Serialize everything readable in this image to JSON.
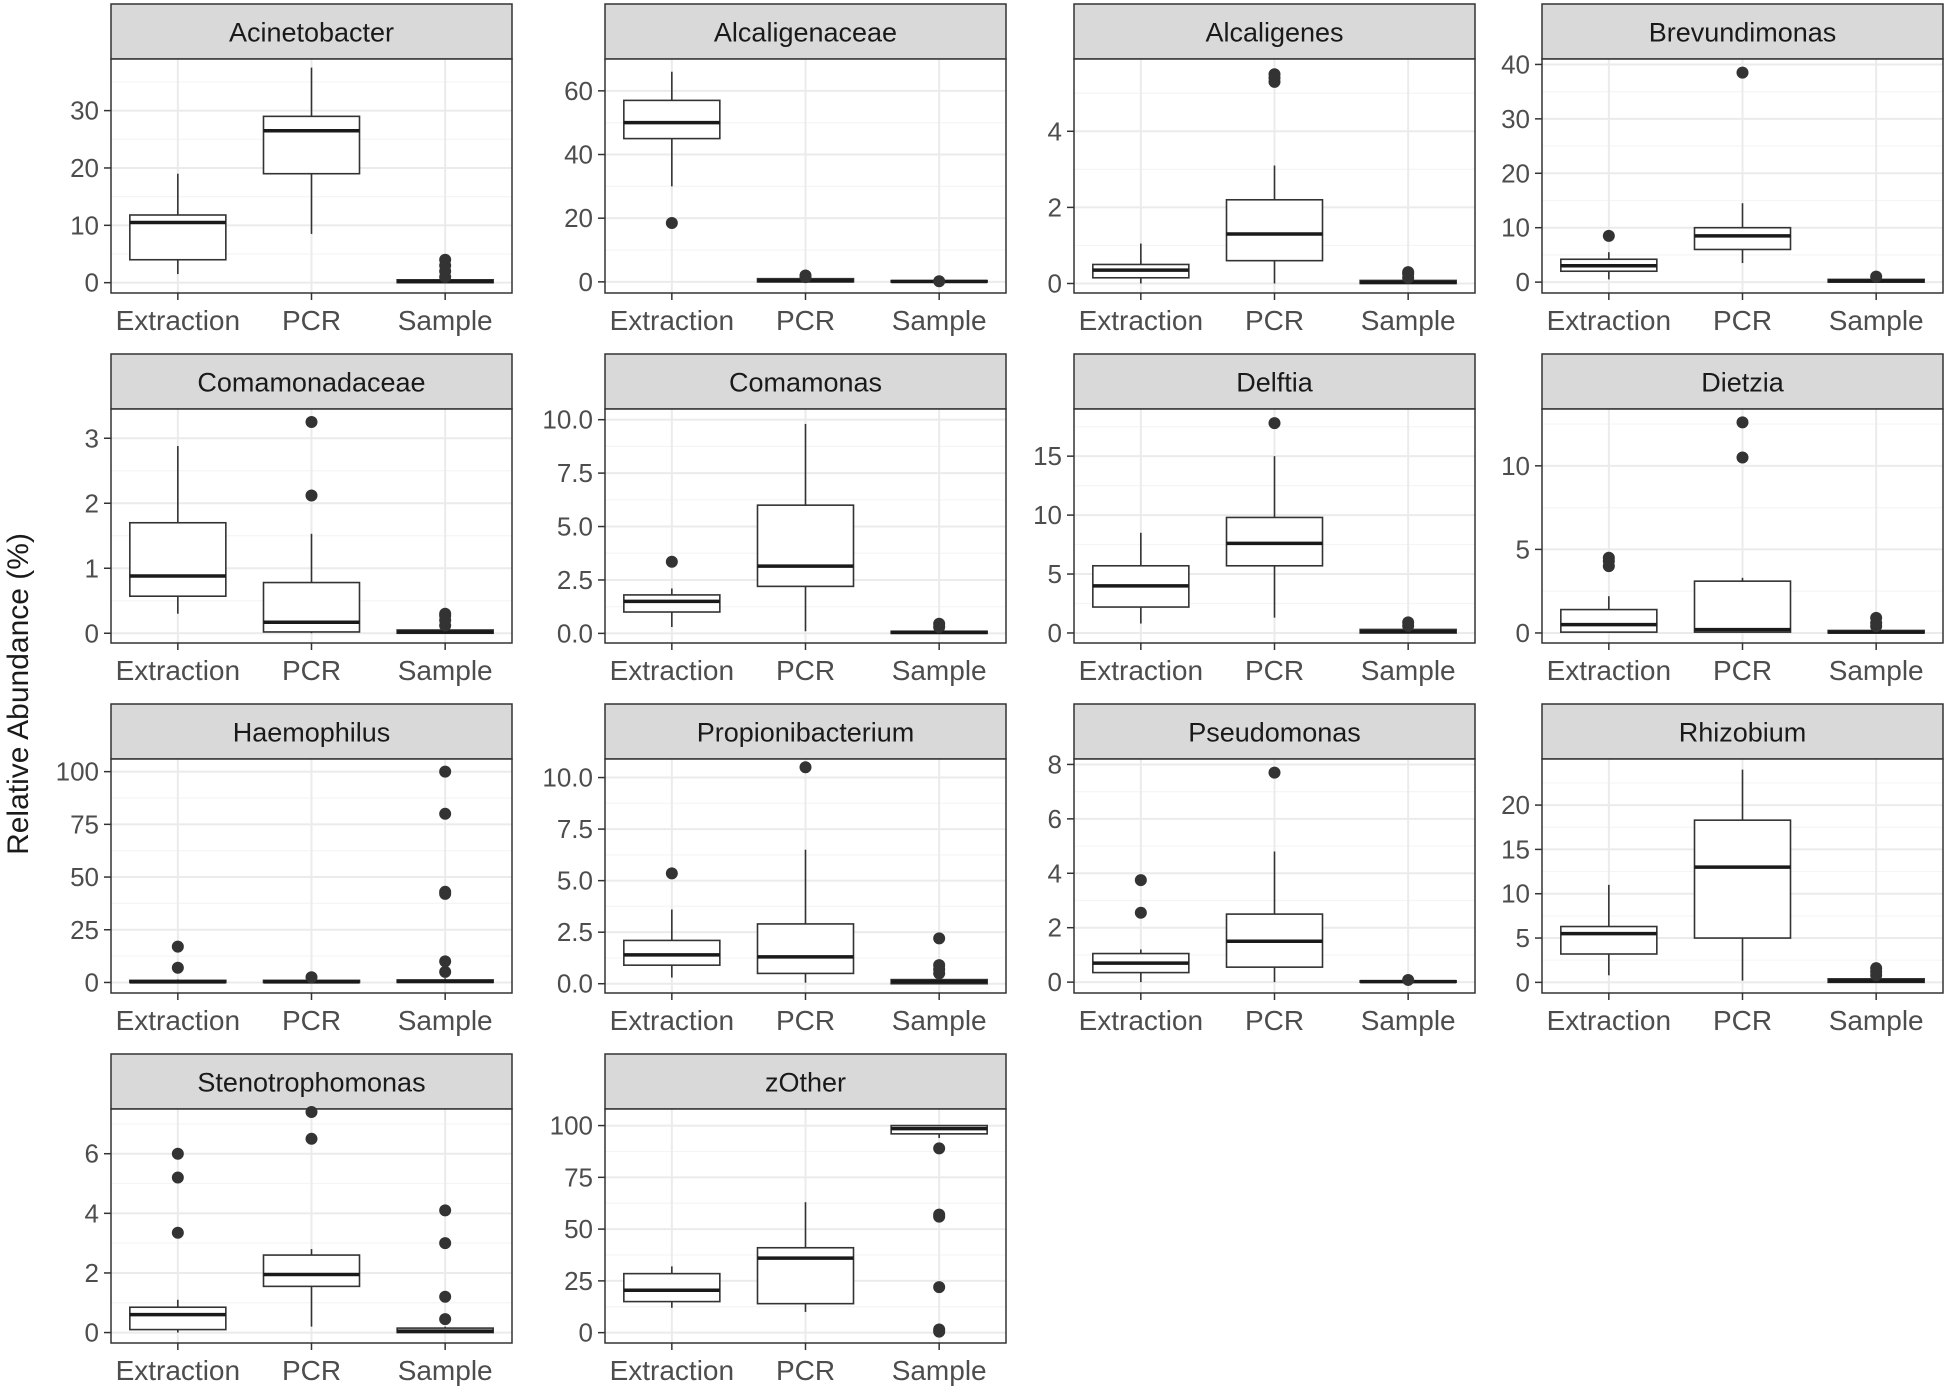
{
  "chart_data": {
    "type": "boxplot",
    "ylabel": "Relative Abundance (%)",
    "xlabel": "",
    "categories": [
      "Extraction",
      "PCR",
      "Sample"
    ],
    "panels": [
      {
        "title": "Acinetobacter",
        "ylim": [
          -1.8,
          39
        ],
        "yticks": [
          0,
          10,
          20,
          30
        ],
        "boxes": [
          {
            "category": "Extraction",
            "q1": 4,
            "median": 10.5,
            "q3": 11.8,
            "low": 1.5,
            "high": 19,
            "outliers": []
          },
          {
            "category": "PCR",
            "q1": 19,
            "median": 26.5,
            "q3": 29,
            "low": 8.5,
            "high": 37.5,
            "outliers": []
          },
          {
            "category": "Sample",
            "q1": 0,
            "median": 0.2,
            "q3": 0.5,
            "low": 0,
            "high": 0.6,
            "outliers": [
              1,
              2,
              3,
              4
            ]
          }
        ]
      },
      {
        "title": "Alcaligenaceae",
        "ylim": [
          -3.5,
          70
        ],
        "yticks": [
          0,
          20,
          40,
          60
        ],
        "boxes": [
          {
            "category": "Extraction",
            "q1": 45,
            "median": 50,
            "q3": 57,
            "low": 30,
            "high": 66,
            "outliers": [
              18.5
            ]
          },
          {
            "category": "PCR",
            "q1": 0,
            "median": 0.3,
            "q3": 1,
            "low": 0,
            "high": 1.2,
            "outliers": [
              1.5,
              2
            ]
          },
          {
            "category": "Sample",
            "q1": 0,
            "median": 0.1,
            "q3": 0.4,
            "low": 0,
            "high": 0.5,
            "outliers": [
              0.2
            ]
          }
        ]
      },
      {
        "title": "Alcaligenes",
        "ylim": [
          -0.25,
          5.9
        ],
        "yticks": [
          0,
          2,
          4
        ],
        "boxes": [
          {
            "category": "Extraction",
            "q1": 0.15,
            "median": 0.35,
            "q3": 0.5,
            "low": 0,
            "high": 1.05,
            "outliers": []
          },
          {
            "category": "PCR",
            "q1": 0.6,
            "median": 1.3,
            "q3": 2.2,
            "low": 0,
            "high": 3.1,
            "outliers": [
              5.3,
              5.4,
              5.5
            ]
          },
          {
            "category": "Sample",
            "q1": 0,
            "median": 0.03,
            "q3": 0.08,
            "low": 0,
            "high": 0.1,
            "outliers": [
              0.15,
              0.25,
              0.3
            ]
          }
        ]
      },
      {
        "title": "Brevundimonas",
        "ylim": [
          -2,
          41
        ],
        "yticks": [
          0,
          10,
          20,
          30,
          40
        ],
        "boxes": [
          {
            "category": "Extraction",
            "q1": 2,
            "median": 3,
            "q3": 4.2,
            "low": 0.5,
            "high": 5.5,
            "outliers": [
              8.5
            ]
          },
          {
            "category": "PCR",
            "q1": 6,
            "median": 8.5,
            "q3": 10,
            "low": 3.5,
            "high": 14.5,
            "outliers": [
              38.5
            ]
          },
          {
            "category": "Sample",
            "q1": 0,
            "median": 0.2,
            "q3": 0.5,
            "low": 0,
            "high": 0.6,
            "outliers": [
              1
            ]
          }
        ]
      },
      {
        "title": "Comamonadaceae",
        "ylim": [
          -0.15,
          3.45
        ],
        "yticks": [
          0,
          1,
          2,
          3
        ],
        "boxes": [
          {
            "category": "Extraction",
            "q1": 0.57,
            "median": 0.88,
            "q3": 1.7,
            "low": 0.3,
            "high": 2.88,
            "outliers": []
          },
          {
            "category": "PCR",
            "q1": 0.02,
            "median": 0.17,
            "q3": 0.78,
            "low": 0,
            "high": 1.53,
            "outliers": [
              2.12,
              3.25
            ]
          },
          {
            "category": "Sample",
            "q1": 0,
            "median": 0.02,
            "q3": 0.05,
            "low": 0,
            "high": 0.08,
            "outliers": [
              0.12,
              0.2,
              0.27,
              0.3
            ]
          }
        ]
      },
      {
        "title": "Comamonas",
        "ylim": [
          -0.45,
          10.5
        ],
        "yticks": [
          0,
          2.5,
          5,
          7.5,
          10
        ],
        "yticklabels": [
          "0.0",
          "2.5",
          "5.0",
          "7.5",
          "10.0"
        ],
        "boxes": [
          {
            "category": "Extraction",
            "q1": 1,
            "median": 1.5,
            "q3": 1.8,
            "low": 0.3,
            "high": 2.1,
            "outliers": [
              3.35
            ]
          },
          {
            "category": "PCR",
            "q1": 2.2,
            "median": 3.15,
            "q3": 6,
            "low": 0.1,
            "high": 9.8,
            "outliers": []
          },
          {
            "category": "Sample",
            "q1": 0,
            "median": 0.05,
            "q3": 0.1,
            "low": 0,
            "high": 0.15,
            "outliers": [
              0.3,
              0.45
            ]
          }
        ]
      },
      {
        "title": "Delftia",
        "ylim": [
          -0.85,
          19
        ],
        "yticks": [
          0,
          5,
          10,
          15
        ],
        "boxes": [
          {
            "category": "Extraction",
            "q1": 2.2,
            "median": 4,
            "q3": 5.7,
            "low": 0.8,
            "high": 8.5,
            "outliers": []
          },
          {
            "category": "PCR",
            "q1": 5.7,
            "median": 7.6,
            "q3": 9.8,
            "low": 1.3,
            "high": 15,
            "outliers": [
              17.8
            ]
          },
          {
            "category": "Sample",
            "q1": 0,
            "median": 0.1,
            "q3": 0.3,
            "low": 0,
            "high": 0.4,
            "outliers": [
              0.6,
              0.9
            ]
          }
        ]
      },
      {
        "title": "Dietzia",
        "ylim": [
          -0.6,
          13.4
        ],
        "yticks": [
          0,
          5,
          10
        ],
        "boxes": [
          {
            "category": "Extraction",
            "q1": 0.05,
            "median": 0.5,
            "q3": 1.4,
            "low": 0,
            "high": 2.2,
            "outliers": [
              4,
              4.3,
              4.5
            ]
          },
          {
            "category": "PCR",
            "q1": 0.05,
            "median": 0.2,
            "q3": 3.1,
            "low": 0,
            "high": 3.3,
            "outliers": [
              10.5,
              12.6
            ]
          },
          {
            "category": "Sample",
            "q1": 0,
            "median": 0.05,
            "q3": 0.15,
            "low": 0,
            "high": 0.2,
            "outliers": [
              0.4,
              0.6,
              0.9
            ]
          }
        ]
      },
      {
        "title": "Haemophilus",
        "ylim": [
          -5,
          106
        ],
        "yticks": [
          0,
          25,
          50,
          75,
          100
        ],
        "boxes": [
          {
            "category": "Extraction",
            "q1": 0,
            "median": 0.3,
            "q3": 1,
            "low": 0,
            "high": 1.5,
            "outliers": [
              7,
              17
            ]
          },
          {
            "category": "PCR",
            "q1": 0,
            "median": 0.3,
            "q3": 1,
            "low": 0,
            "high": 1.5,
            "outliers": [
              2.5
            ]
          },
          {
            "category": "Sample",
            "q1": 0,
            "median": 0.5,
            "q3": 1.2,
            "low": 0,
            "high": 2,
            "outliers": [
              5,
              10,
              42,
              43,
              80,
              100
            ]
          }
        ]
      },
      {
        "title": "Propionibacterium",
        "ylim": [
          -0.45,
          10.9
        ],
        "yticks": [
          0,
          2.5,
          5,
          7.5,
          10
        ],
        "yticklabels": [
          "0.0",
          "2.5",
          "5.0",
          "7.5",
          "10.0"
        ],
        "boxes": [
          {
            "category": "Extraction",
            "q1": 0.9,
            "median": 1.4,
            "q3": 2.1,
            "low": 0.3,
            "high": 3.6,
            "outliers": [
              5.35
            ]
          },
          {
            "category": "PCR",
            "q1": 0.5,
            "median": 1.3,
            "q3": 2.9,
            "low": 0.05,
            "high": 6.5,
            "outliers": [
              10.5
            ]
          },
          {
            "category": "Sample",
            "q1": 0,
            "median": 0.1,
            "q3": 0.2,
            "low": 0,
            "high": 0.3,
            "outliers": [
              0.5,
              0.7,
              0.9,
              2.2
            ]
          }
        ]
      },
      {
        "title": "Pseudomonas",
        "ylim": [
          -0.4,
          8.2
        ],
        "yticks": [
          0,
          2,
          4,
          6,
          8
        ],
        "boxes": [
          {
            "category": "Extraction",
            "q1": 0.35,
            "median": 0.7,
            "q3": 1.05,
            "low": 0,
            "high": 1.2,
            "outliers": [
              2.55,
              3.75
            ]
          },
          {
            "category": "PCR",
            "q1": 0.55,
            "median": 1.5,
            "q3": 2.5,
            "low": 0,
            "high": 4.8,
            "outliers": [
              7.7
            ]
          },
          {
            "category": "Sample",
            "q1": 0,
            "median": 0.02,
            "q3": 0.05,
            "low": 0,
            "high": 0.06,
            "outliers": [
              0.08
            ]
          }
        ]
      },
      {
        "title": "Rhizobium",
        "ylim": [
          -1.2,
          25.2
        ],
        "yticks": [
          0,
          5,
          10,
          15,
          20
        ],
        "boxes": [
          {
            "category": "Extraction",
            "q1": 3.2,
            "median": 5.5,
            "q3": 6.3,
            "low": 0.8,
            "high": 11,
            "outliers": []
          },
          {
            "category": "PCR",
            "q1": 5,
            "median": 13,
            "q3": 18.3,
            "low": 0.2,
            "high": 24,
            "outliers": []
          },
          {
            "category": "Sample",
            "q1": 0,
            "median": 0.15,
            "q3": 0.4,
            "low": 0,
            "high": 0.6,
            "outliers": [
              0.8,
              1.2,
              1.6
            ]
          }
        ]
      },
      {
        "title": "Stenotrophomonas",
        "ylim": [
          -0.35,
          7.5
        ],
        "yticks": [
          0,
          2,
          4,
          6
        ],
        "boxes": [
          {
            "category": "Extraction",
            "q1": 0.1,
            "median": 0.6,
            "q3": 0.85,
            "low": 0,
            "high": 1.1,
            "outliers": [
              3.35,
              5.2,
              6
            ]
          },
          {
            "category": "PCR",
            "q1": 1.55,
            "median": 1.95,
            "q3": 2.6,
            "low": 0.2,
            "high": 2.8,
            "outliers": [
              6.5,
              7.4
            ]
          },
          {
            "category": "Sample",
            "q1": 0,
            "median": 0.05,
            "q3": 0.15,
            "low": 0,
            "high": 0.2,
            "outliers": [
              0.45,
              1.2,
              3,
              4.1
            ]
          }
        ]
      },
      {
        "title": "zOther",
        "ylim": [
          -5,
          108
        ],
        "yticks": [
          0,
          25,
          50,
          75,
          100
        ],
        "boxes": [
          {
            "category": "Extraction",
            "q1": 15,
            "median": 20.5,
            "q3": 28.5,
            "low": 12,
            "high": 32,
            "outliers": []
          },
          {
            "category": "PCR",
            "q1": 14,
            "median": 36,
            "q3": 41,
            "low": 10,
            "high": 63,
            "outliers": []
          },
          {
            "category": "Sample",
            "q1": 96,
            "median": 98.5,
            "q3": 100,
            "low": 94,
            "high": 100,
            "outliers": [
              0.5,
              1.5,
              22,
              56,
              57,
              89
            ]
          }
        ]
      }
    ]
  }
}
